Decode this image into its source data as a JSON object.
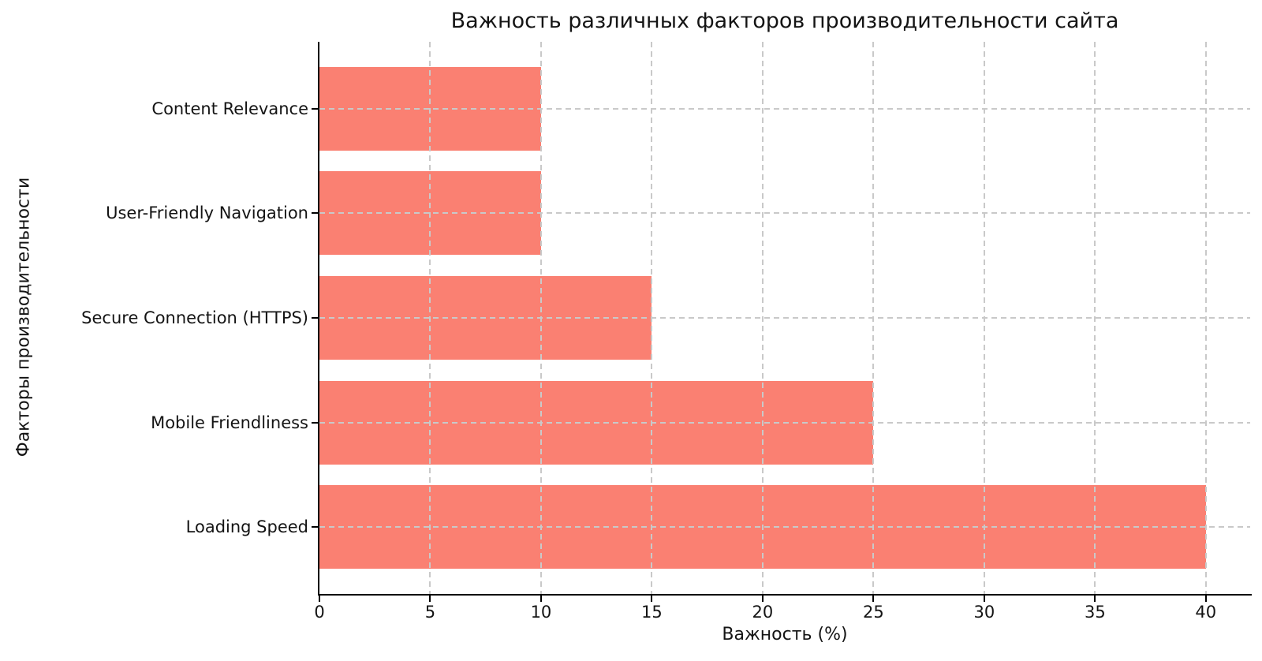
{
  "chart_data": {
    "type": "bar",
    "orientation": "horizontal",
    "title": "Важность различных факторов производительности сайта",
    "xlabel": "Важность (%)",
    "ylabel": "Факторы производительности",
    "categories": [
      "Content Relevance",
      "User-Friendly Navigation",
      "Secure Connection (HTTPS)",
      "Mobile Friendliness",
      "Loading Speed"
    ],
    "category_order": "top-to-bottom",
    "values": [
      10,
      10,
      15,
      25,
      40
    ],
    "x_ticks": [
      0,
      5,
      10,
      15,
      20,
      25,
      30,
      35,
      40
    ],
    "xlim": [
      0,
      42
    ],
    "bar_thickness_fraction": 0.8,
    "grid": {
      "visible": true,
      "style": "dashed",
      "axis": "both",
      "layer": "above-bars"
    },
    "legend_position": "none",
    "colors": {
      "bar": "#FA8072",
      "grid": "#c9c9c9",
      "spine": "#000000",
      "text": "#141414"
    }
  }
}
